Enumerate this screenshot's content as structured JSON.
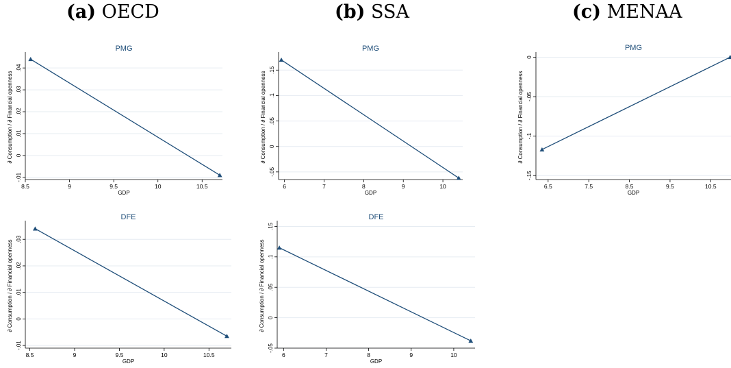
{
  "headings": [
    {
      "label": "(a)",
      "name": "OECD"
    },
    {
      "label": "(b)",
      "name": "SSA"
    },
    {
      "label": "(c)",
      "name": "MENAA"
    }
  ],
  "colors": {
    "line": "#1f4e79",
    "grid": "#e6ecf2",
    "axis": "#000000",
    "title": "#1f4e79"
  },
  "chart_data": [
    {
      "id": "oecd-pmg",
      "type": "line",
      "title": "PMG",
      "xlabel": "GDP",
      "ylabel": "∂ Consumption / ∂ Financial openness",
      "xlim": [
        8.5,
        10.73
      ],
      "ylim": [
        -0.011,
        0.046
      ],
      "xticks": [
        "8.5",
        "9",
        "9.5",
        "10",
        "10.5"
      ],
      "xtick_values": [
        8.5,
        9,
        9.5,
        10,
        10.5
      ],
      "yticks": [
        "-.01",
        "0",
        ".01",
        ".02",
        ".03",
        ".04"
      ],
      "ytick_values": [
        -0.01,
        0,
        0.01,
        0.02,
        0.03,
        0.04
      ],
      "x": [
        8.56,
        10.7
      ],
      "y": [
        0.044,
        -0.009
      ]
    },
    {
      "id": "ssa-pmg",
      "type": "line",
      "title": "PMG",
      "xlabel": "GDP",
      "ylabel": "∂ Consumption / ∂ Financial openness",
      "xlim": [
        5.85,
        10.5
      ],
      "ylim": [
        -0.065,
        0.18
      ],
      "xticks": [
        "6",
        "7",
        "8",
        "9",
        "10"
      ],
      "xtick_values": [
        6,
        7,
        8,
        9,
        10
      ],
      "yticks": [
        "-.05",
        "0",
        ".05",
        ".1",
        ".15"
      ],
      "ytick_values": [
        -0.05,
        0,
        0.05,
        0.1,
        0.15
      ],
      "x": [
        5.92,
        10.4
      ],
      "y": [
        0.17,
        -0.062
      ]
    },
    {
      "id": "menaa-pmg",
      "type": "line",
      "title": "PMG",
      "xlabel": "GDP",
      "ylabel": "∂ Consumption / ∂ Financial openness",
      "xlim": [
        6.2,
        11.0
      ],
      "ylim": [
        -0.155,
        0.003
      ],
      "xticks": [
        "6.5",
        "7.5",
        "8.5",
        "9.5",
        "10.5"
      ],
      "xtick_values": [
        6.5,
        7.5,
        8.5,
        9.5,
        10.5
      ],
      "yticks": [
        "-.15",
        "-.1",
        "-.05",
        "0"
      ],
      "ytick_values": [
        -0.15,
        -0.1,
        -0.05,
        0
      ],
      "x": [
        6.35,
        10.98
      ],
      "y": [
        -0.117,
        0.0
      ]
    },
    {
      "id": "oecd-dfe",
      "type": "line",
      "title": "DFE",
      "xlabel": "GDP",
      "ylabel": "∂ Consumption / ∂ Financial openness",
      "xlim": [
        8.45,
        10.75
      ],
      "ylim": [
        -0.011,
        0.036
      ],
      "xticks": [
        "8.5",
        "9",
        "9.5",
        "10",
        "10.5"
      ],
      "xtick_values": [
        8.5,
        9,
        9.5,
        10,
        10.5
      ],
      "yticks": [
        "-.01",
        "0",
        ".01",
        ".02",
        ".03"
      ],
      "ytick_values": [
        -0.01,
        0,
        0.01,
        0.02,
        0.03
      ],
      "x": [
        8.56,
        10.7
      ],
      "y": [
        0.034,
        -0.0065
      ]
    },
    {
      "id": "ssa-dfe",
      "type": "line",
      "title": "DFE",
      "xlabel": "GDP",
      "ylabel": "∂ Consumption / ∂ Financial openness",
      "xlim": [
        5.85,
        10.5
      ],
      "ylim": [
        -0.05,
        0.155
      ],
      "xticks": [
        "6",
        "7",
        "8",
        "9",
        "10"
      ],
      "xtick_values": [
        6,
        7,
        8,
        9,
        10
      ],
      "yticks": [
        "-.05",
        "0",
        ".05",
        ".1",
        ".15"
      ],
      "ytick_values": [
        -0.05,
        0,
        0.05,
        0.1,
        0.15
      ],
      "x": [
        5.9,
        10.4
      ],
      "y": [
        0.115,
        -0.038
      ]
    }
  ]
}
